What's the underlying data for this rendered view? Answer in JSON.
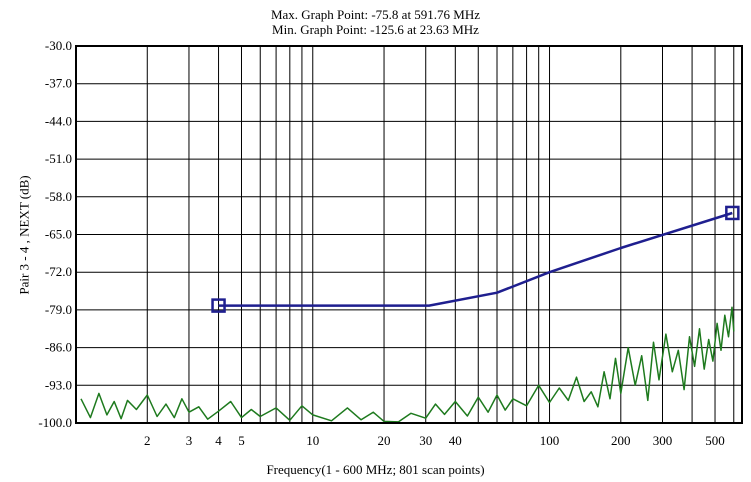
{
  "header": {
    "max_line": "Max. Graph Point: -75.8 at 591.76 MHz",
    "min_line": "Min. Graph Point: -125.6 at 23.63 MHz"
  },
  "chart_data": {
    "type": "line",
    "title": "",
    "xlabel": "Frequency(1 - 600 MHz; 801 scan points)",
    "ylabel": "Pair 3 - 4 , NEXT (dB)",
    "x_scale": "log",
    "xlim": [
      1,
      650
    ],
    "ylim": [
      -100.0,
      -30.0
    ],
    "y_ticks": [
      "-30.0",
      "-37.0",
      "-44.0",
      "-51.0",
      "-58.0",
      "-65.0",
      "-72.0",
      "-79.0",
      "-86.0",
      "-93.0",
      "-100.0"
    ],
    "x_ticks": [
      {
        "value": 2,
        "label": "2"
      },
      {
        "value": 3,
        "label": "3"
      },
      {
        "value": 4,
        "label": "4"
      },
      {
        "value": 5,
        "label": "5"
      },
      {
        "value": 10,
        "label": "10"
      },
      {
        "value": 20,
        "label": "20"
      },
      {
        "value": 30,
        "label": "30"
      },
      {
        "value": 40,
        "label": "40"
      },
      {
        "value": 100,
        "label": "100"
      },
      {
        "value": 200,
        "label": "200"
      },
      {
        "value": 300,
        "label": "300"
      },
      {
        "value": 500,
        "label": "500"
      }
    ],
    "grid": true,
    "series": [
      {
        "color": "#1f1f8f",
        "points": [
          [
            4,
            -78.2
          ],
          [
            31,
            -78.2
          ],
          [
            60,
            -75.8
          ],
          [
            100,
            -72.0
          ],
          [
            200,
            -67.5
          ],
          [
            591.76,
            -61.0
          ]
        ],
        "markers": [
          [
            4,
            -78.2
          ],
          [
            591.76,
            -61.0
          ]
        ]
      },
      {
        "color": "#1e7a1e",
        "points": [
          [
            1.05,
            -95.5
          ],
          [
            1.15,
            -99.0
          ],
          [
            1.25,
            -94.5
          ],
          [
            1.35,
            -98.5
          ],
          [
            1.45,
            -96.0
          ],
          [
            1.55,
            -99.2
          ],
          [
            1.65,
            -95.8
          ],
          [
            1.8,
            -97.5
          ],
          [
            2.0,
            -94.8
          ],
          [
            2.2,
            -98.8
          ],
          [
            2.4,
            -96.5
          ],
          [
            2.6,
            -99.0
          ],
          [
            2.8,
            -95.5
          ],
          [
            3.0,
            -98.0
          ],
          [
            3.3,
            -97.0
          ],
          [
            3.6,
            -99.3
          ],
          [
            4.0,
            -97.8
          ],
          [
            4.5,
            -96.0
          ],
          [
            5.0,
            -99.0
          ],
          [
            5.5,
            -97.5
          ],
          [
            6.0,
            -98.8
          ],
          [
            7.0,
            -97.2
          ],
          [
            8.0,
            -99.5
          ],
          [
            9.0,
            -96.8
          ],
          [
            10,
            -98.5
          ],
          [
            12,
            -99.6
          ],
          [
            14,
            -97.2
          ],
          [
            16,
            -99.4
          ],
          [
            18,
            -98.0
          ],
          [
            20,
            -99.7
          ],
          [
            23,
            -99.8
          ],
          [
            26,
            -98.2
          ],
          [
            30,
            -99.1
          ],
          [
            33,
            -96.5
          ],
          [
            36,
            -98.4
          ],
          [
            40,
            -96.0
          ],
          [
            45,
            -98.7
          ],
          [
            50,
            -95.2
          ],
          [
            55,
            -98.0
          ],
          [
            60,
            -94.8
          ],
          [
            65,
            -97.6
          ],
          [
            70,
            -95.5
          ],
          [
            80,
            -96.8
          ],
          [
            90,
            -93.0
          ],
          [
            100,
            -96.2
          ],
          [
            110,
            -93.5
          ],
          [
            120,
            -95.8
          ],
          [
            130,
            -91.5
          ],
          [
            140,
            -96.0
          ],
          [
            150,
            -94.2
          ],
          [
            160,
            -97.0
          ],
          [
            170,
            -90.5
          ],
          [
            180,
            -95.5
          ],
          [
            190,
            -88.0
          ],
          [
            200,
            -94.5
          ],
          [
            215,
            -86.0
          ],
          [
            230,
            -93.0
          ],
          [
            245,
            -87.5
          ],
          [
            260,
            -95.8
          ],
          [
            275,
            -85.0
          ],
          [
            290,
            -92.0
          ],
          [
            310,
            -83.5
          ],
          [
            330,
            -90.5
          ],
          [
            350,
            -86.5
          ],
          [
            370,
            -93.8
          ],
          [
            390,
            -84.0
          ],
          [
            410,
            -89.5
          ],
          [
            430,
            -82.5
          ],
          [
            450,
            -90.0
          ],
          [
            470,
            -84.5
          ],
          [
            490,
            -88.5
          ],
          [
            510,
            -81.5
          ],
          [
            530,
            -86.5
          ],
          [
            550,
            -80.0
          ],
          [
            570,
            -84.0
          ],
          [
            590,
            -78.5
          ],
          [
            600,
            -83.0
          ]
        ]
      }
    ]
  }
}
